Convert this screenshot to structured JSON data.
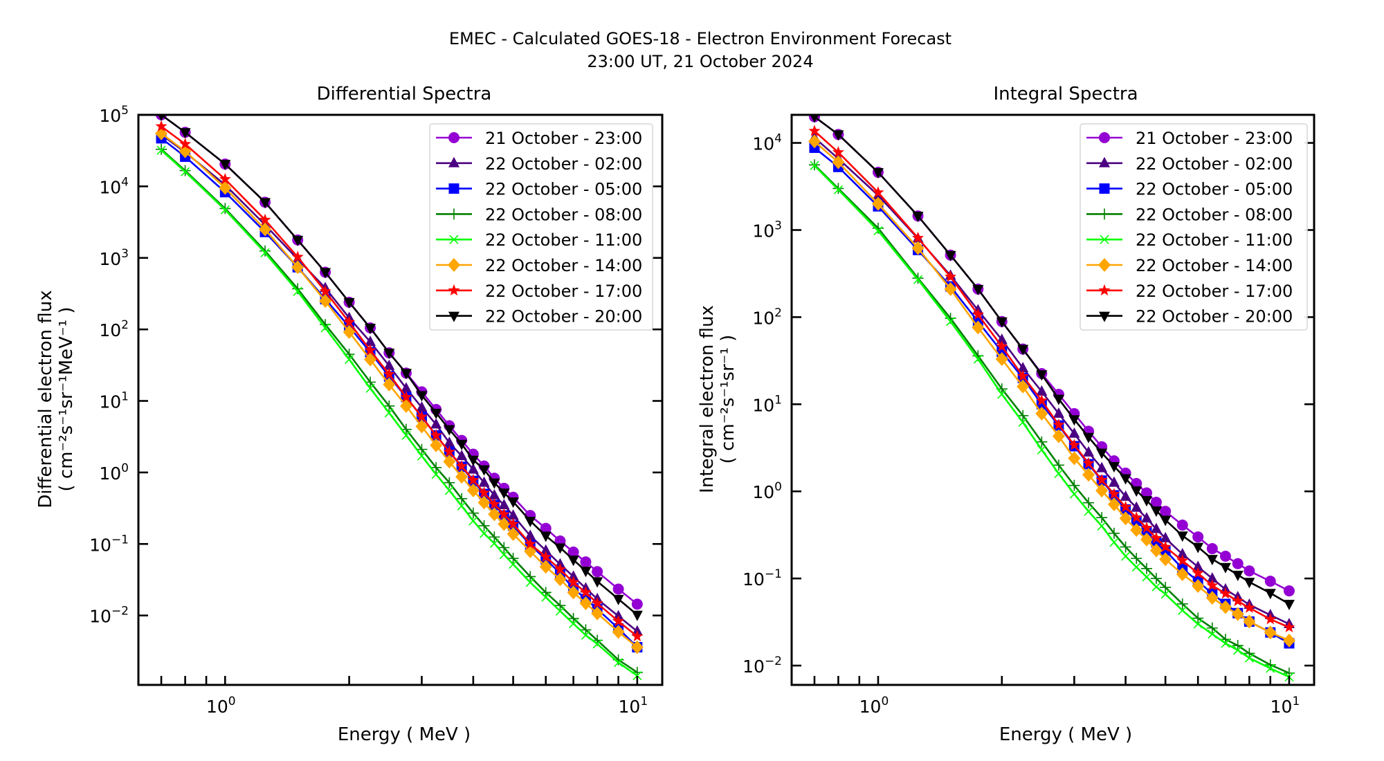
{
  "figure": {
    "title_line1": "EMEC - Calculated GOES-18 - Electron Environment Forecast",
    "title_line2": "23:00 UT, 21 October 2024"
  },
  "chart_data": [
    {
      "id": "differential",
      "type": "line",
      "title": "Differential Spectra",
      "xlabel": "Energy ( MeV )",
      "ylabel_line1": "Differential electron flux",
      "ylabel_line2": "( cm⁻²s⁻¹sr⁻¹MeV⁻¹ )",
      "xscale": "log",
      "yscale": "log",
      "xlim": [
        0.616,
        11.5
      ],
      "ylim": [
        0.00107,
        100000
      ],
      "xticks": [
        {
          "value": 1,
          "base": "10",
          "exp": "0"
        },
        {
          "value": 10,
          "base": "10",
          "exp": "1"
        }
      ],
      "yticks": [
        {
          "value": 100000,
          "base": "10",
          "exp": "5"
        },
        {
          "value": 10000,
          "base": "10",
          "exp": "4"
        },
        {
          "value": 1000,
          "base": "10",
          "exp": "3"
        },
        {
          "value": 100,
          "base": "10",
          "exp": "2"
        },
        {
          "value": 10,
          "base": "10",
          "exp": "1"
        },
        {
          "value": 1,
          "base": "10",
          "exp": "0"
        },
        {
          "value": 0.1,
          "base": "10",
          "exp": "−1"
        },
        {
          "value": 0.01,
          "base": "10",
          "exp": "−2"
        }
      ],
      "grid": false,
      "legend_position": "top-right",
      "x": [
        0.7,
        0.8,
        1.0,
        1.25,
        1.5,
        1.75,
        2.0,
        2.25,
        2.5,
        2.75,
        3.0,
        3.25,
        3.5,
        3.75,
        4.0,
        4.25,
        4.5,
        4.75,
        5.0,
        5.5,
        6.0,
        6.5,
        7.0,
        7.5,
        8.0,
        9.0,
        10.0
      ],
      "series": [
        {
          "name": "21 October - 23:00",
          "color": "#9400d3",
          "marker": "circle",
          "values": [
            100000,
            57000,
            20500,
            6000,
            1780,
            630,
            240,
            105,
            47,
            24.5,
            13.4,
            7.6,
            4.5,
            2.8,
            1.8,
            1.23,
            0.83,
            0.6,
            0.45,
            0.25,
            0.165,
            0.11,
            0.077,
            0.056,
            0.041,
            0.0234,
            0.0144
          ]
        },
        {
          "name": "22 October - 02:00",
          "color": "#4b0082",
          "marker": "triangle-up",
          "values": [
            53000,
            30000,
            10500,
            2900,
            960,
            380,
            145,
            67,
            31,
            15,
            8.1,
            4.7,
            2.6,
            1.7,
            1.1,
            0.72,
            0.48,
            0.35,
            0.25,
            0.13,
            0.081,
            0.052,
            0.035,
            0.024,
            0.017,
            0.0098,
            0.006
          ]
        },
        {
          "name": "22 October - 05:00",
          "color": "#0000ff",
          "marker": "square",
          "values": [
            47000,
            26000,
            8300,
            2300,
            740,
            265,
            109,
            48,
            22,
            11.3,
            6.0,
            3.3,
            1.94,
            1.2,
            0.76,
            0.5,
            0.35,
            0.25,
            0.18,
            0.097,
            0.061,
            0.039,
            0.024,
            0.017,
            0.0123,
            0.0066,
            0.0036
          ]
        },
        {
          "name": "22 October - 08:00",
          "color": "#008000",
          "marker": "plus",
          "values": [
            33000,
            16600,
            4900,
            1250,
            370,
            117,
            45,
            18.3,
            8.5,
            4.0,
            2.1,
            1.17,
            0.72,
            0.43,
            0.27,
            0.18,
            0.125,
            0.089,
            0.063,
            0.035,
            0.021,
            0.0138,
            0.0091,
            0.0063,
            0.0045,
            0.0024,
            0.0016
          ]
        },
        {
          "name": "22 October - 11:00",
          "color": "#00ff00",
          "marker": "x",
          "values": [
            32000,
            16000,
            4700,
            1180,
            340,
            105,
            38,
            15,
            6.8,
            3.3,
            1.7,
            0.94,
            0.56,
            0.34,
            0.21,
            0.14,
            0.102,
            0.071,
            0.052,
            0.029,
            0.018,
            0.0115,
            0.0077,
            0.0053,
            0.004,
            0.0022,
            0.00144
          ]
        },
        {
          "name": "22 October - 14:00",
          "color": "#ffa500",
          "marker": "diamond",
          "values": [
            55000,
            31000,
            9500,
            2500,
            740,
            250,
            92,
            38,
            17,
            8.5,
            4.4,
            2.4,
            1.42,
            0.87,
            0.56,
            0.38,
            0.26,
            0.19,
            0.138,
            0.079,
            0.048,
            0.032,
            0.021,
            0.0148,
            0.0107,
            0.0059,
            0.0036
          ]
        },
        {
          "name": "22 October - 17:00",
          "color": "#ff0000",
          "marker": "star",
          "values": [
            69000,
            39000,
            12600,
            3400,
            1030,
            340,
            126,
            51,
            23.6,
            11.3,
            6.0,
            3.3,
            1.94,
            1.22,
            0.78,
            0.52,
            0.36,
            0.26,
            0.19,
            0.1,
            0.066,
            0.044,
            0.029,
            0.021,
            0.0148,
            0.0083,
            0.0051
          ]
        },
        {
          "name": "22 October - 20:00",
          "color": "#000000",
          "marker": "triangle-down",
          "values": [
            100000,
            57000,
            20500,
            6000,
            1780,
            630,
            240,
            105,
            47,
            24.5,
            12,
            6.8,
            4.0,
            2.5,
            1.5,
            1.1,
            0.72,
            0.52,
            0.39,
            0.21,
            0.13,
            0.089,
            0.06,
            0.042,
            0.03,
            0.017,
            0.0102
          ]
        }
      ]
    },
    {
      "id": "integral",
      "type": "line",
      "title": "Integral Spectra",
      "xlabel": "Energy ( MeV )",
      "ylabel_line1": "Integral electron flux",
      "ylabel_line2": "( cm⁻²s⁻¹sr⁻¹ )",
      "xscale": "log",
      "yscale": "log",
      "xlim": [
        0.616,
        11.5
      ],
      "ylim": [
        0.006,
        21000
      ],
      "xticks": [
        {
          "value": 1,
          "base": "10",
          "exp": "0"
        },
        {
          "value": 10,
          "base": "10",
          "exp": "1"
        }
      ],
      "yticks": [
        {
          "value": 10000,
          "base": "10",
          "exp": "4"
        },
        {
          "value": 1000,
          "base": "10",
          "exp": "3"
        },
        {
          "value": 100,
          "base": "10",
          "exp": "2"
        },
        {
          "value": 10,
          "base": "10",
          "exp": "1"
        },
        {
          "value": 1,
          "base": "10",
          "exp": "0"
        },
        {
          "value": 0.1,
          "base": "10",
          "exp": "−1"
        },
        {
          "value": 0.01,
          "base": "10",
          "exp": "−2"
        }
      ],
      "grid": false,
      "legend_position": "top-right",
      "x": [
        0.7,
        0.8,
        1.0,
        1.25,
        1.5,
        1.75,
        2.0,
        2.25,
        2.5,
        2.75,
        3.0,
        3.25,
        3.5,
        3.75,
        4.0,
        4.25,
        4.5,
        4.75,
        5.0,
        5.5,
        6.0,
        6.5,
        7.0,
        7.5,
        8.0,
        9.0,
        10.0
      ],
      "series": [
        {
          "name": "21 October - 23:00",
          "color": "#9400d3",
          "marker": "circle",
          "values": [
            20000,
            12500,
            4600,
            1450,
            515,
            210,
            89,
            43,
            22.5,
            13,
            7.8,
            4.9,
            3.25,
            2.24,
            1.62,
            1.23,
            0.96,
            0.75,
            0.59,
            0.41,
            0.3,
            0.22,
            0.18,
            0.148,
            0.122,
            0.093,
            0.072
          ]
        },
        {
          "name": "22 October - 02:00",
          "color": "#4b0082",
          "marker": "triangle-up",
          "values": [
            11500,
            6600,
            2500,
            800,
            300,
            120,
            55,
            26,
            14,
            7.8,
            4.6,
            2.8,
            1.85,
            1.26,
            0.87,
            0.65,
            0.49,
            0.37,
            0.29,
            0.19,
            0.136,
            0.1,
            0.075,
            0.061,
            0.05,
            0.038,
            0.03
          ]
        },
        {
          "name": "22 October - 05:00",
          "color": "#0000ff",
          "marker": "square",
          "values": [
            8800,
            5300,
            1870,
            590,
            225,
            89,
            40,
            20,
            10,
            5.7,
            3.3,
            2.05,
            1.33,
            0.9,
            0.62,
            0.46,
            0.35,
            0.26,
            0.21,
            0.13,
            0.093,
            0.067,
            0.051,
            0.04,
            0.032,
            0.024,
            0.018
          ]
        },
        {
          "name": "22 October - 08:00",
          "color": "#008000",
          "marker": "plus",
          "values": [
            5600,
            3000,
            1050,
            280,
            97,
            36,
            15,
            7.4,
            3.7,
            2.0,
            1.17,
            0.74,
            0.5,
            0.33,
            0.23,
            0.17,
            0.13,
            0.1,
            0.079,
            0.051,
            0.035,
            0.027,
            0.02,
            0.017,
            0.0138,
            0.0102,
            0.0082
          ]
        },
        {
          "name": "22 October - 11:00",
          "color": "#00ff00",
          "marker": "x",
          "values": [
            5500,
            2900,
            980,
            270,
            89,
            33,
            13,
            6.2,
            3.0,
            1.6,
            0.93,
            0.59,
            0.4,
            0.26,
            0.18,
            0.135,
            0.104,
            0.08,
            0.066,
            0.043,
            0.03,
            0.023,
            0.018,
            0.015,
            0.0122,
            0.0093,
            0.0074
          ]
        },
        {
          "name": "22 October - 14:00",
          "color": "#ffa500",
          "marker": "diamond",
          "values": [
            10400,
            6000,
            2000,
            620,
            210,
            76,
            33,
            16,
            7.8,
            4.3,
            2.4,
            1.55,
            1.02,
            0.71,
            0.49,
            0.36,
            0.28,
            0.21,
            0.166,
            0.112,
            0.082,
            0.06,
            0.047,
            0.039,
            0.032,
            0.024,
            0.0194
          ]
        },
        {
          "name": "22 October - 17:00",
          "color": "#ff0000",
          "marker": "star",
          "values": [
            13700,
            7800,
            2700,
            810,
            290,
            107,
            46,
            21,
            11,
            5.8,
            3.4,
            2.1,
            1.35,
            0.93,
            0.66,
            0.5,
            0.38,
            0.29,
            0.23,
            0.16,
            0.115,
            0.083,
            0.067,
            0.055,
            0.046,
            0.034,
            0.0275
          ]
        },
        {
          "name": "22 October - 20:00",
          "color": "#000000",
          "marker": "triangle-down",
          "values": [
            20000,
            12500,
            4600,
            1450,
            515,
            210,
            89,
            43,
            22,
            11.5,
            6.7,
            4.2,
            2.77,
            1.94,
            1.41,
            1.02,
            0.79,
            0.6,
            0.47,
            0.31,
            0.23,
            0.167,
            0.135,
            0.11,
            0.091,
            0.068,
            0.051
          ]
        }
      ]
    }
  ]
}
